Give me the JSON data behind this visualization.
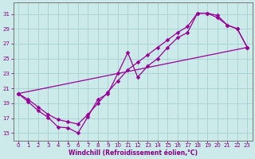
{
  "xlabel": "Windchill (Refroidissement éolien,°C)",
  "bg_color": "#cceaea",
  "grid_color": "#aad4d4",
  "line_color": "#990099",
  "xlim": [
    -0.5,
    23.5
  ],
  "ylim": [
    14.0,
    32.5
  ],
  "xticks": [
    0,
    1,
    2,
    3,
    4,
    5,
    6,
    7,
    8,
    9,
    10,
    11,
    12,
    13,
    14,
    15,
    16,
    17,
    18,
    19,
    20,
    21,
    22,
    23
  ],
  "yticks": [
    15,
    17,
    19,
    21,
    23,
    25,
    27,
    29,
    31
  ],
  "line1_x": [
    0,
    1,
    2,
    3,
    4,
    5,
    6,
    7,
    8,
    9,
    10,
    11,
    12,
    13,
    14,
    15,
    16,
    17,
    18,
    19,
    20,
    21,
    22,
    23
  ],
  "line1_y": [
    20.3,
    19.2,
    18.0,
    17.1,
    15.8,
    15.7,
    15.0,
    17.2,
    19.5,
    20.3,
    23.0,
    25.8,
    22.5,
    24.0,
    25.0,
    26.5,
    27.8,
    28.5,
    31.1,
    31.1,
    30.8,
    29.5,
    29.0,
    26.5
  ],
  "line2_x": [
    0,
    1,
    2,
    3,
    4,
    5,
    6,
    7,
    8,
    9,
    10,
    11,
    12,
    13,
    14,
    15,
    16,
    17,
    18,
    19,
    20,
    21,
    22,
    23
  ],
  "line2_y": [
    20.3,
    19.5,
    18.5,
    17.5,
    16.8,
    16.5,
    16.2,
    17.5,
    19.0,
    20.5,
    22.0,
    23.5,
    24.5,
    25.5,
    26.5,
    27.5,
    28.5,
    29.3,
    31.1,
    31.1,
    30.5,
    29.5,
    29.0,
    26.5
  ],
  "line3_x": [
    0,
    23
  ],
  "line3_y": [
    20.3,
    26.5
  ],
  "markersize": 2.5,
  "linewidth": 0.9,
  "font_color": "#880088",
  "tick_fontsize": 5.0,
  "xlabel_fontsize": 5.5
}
